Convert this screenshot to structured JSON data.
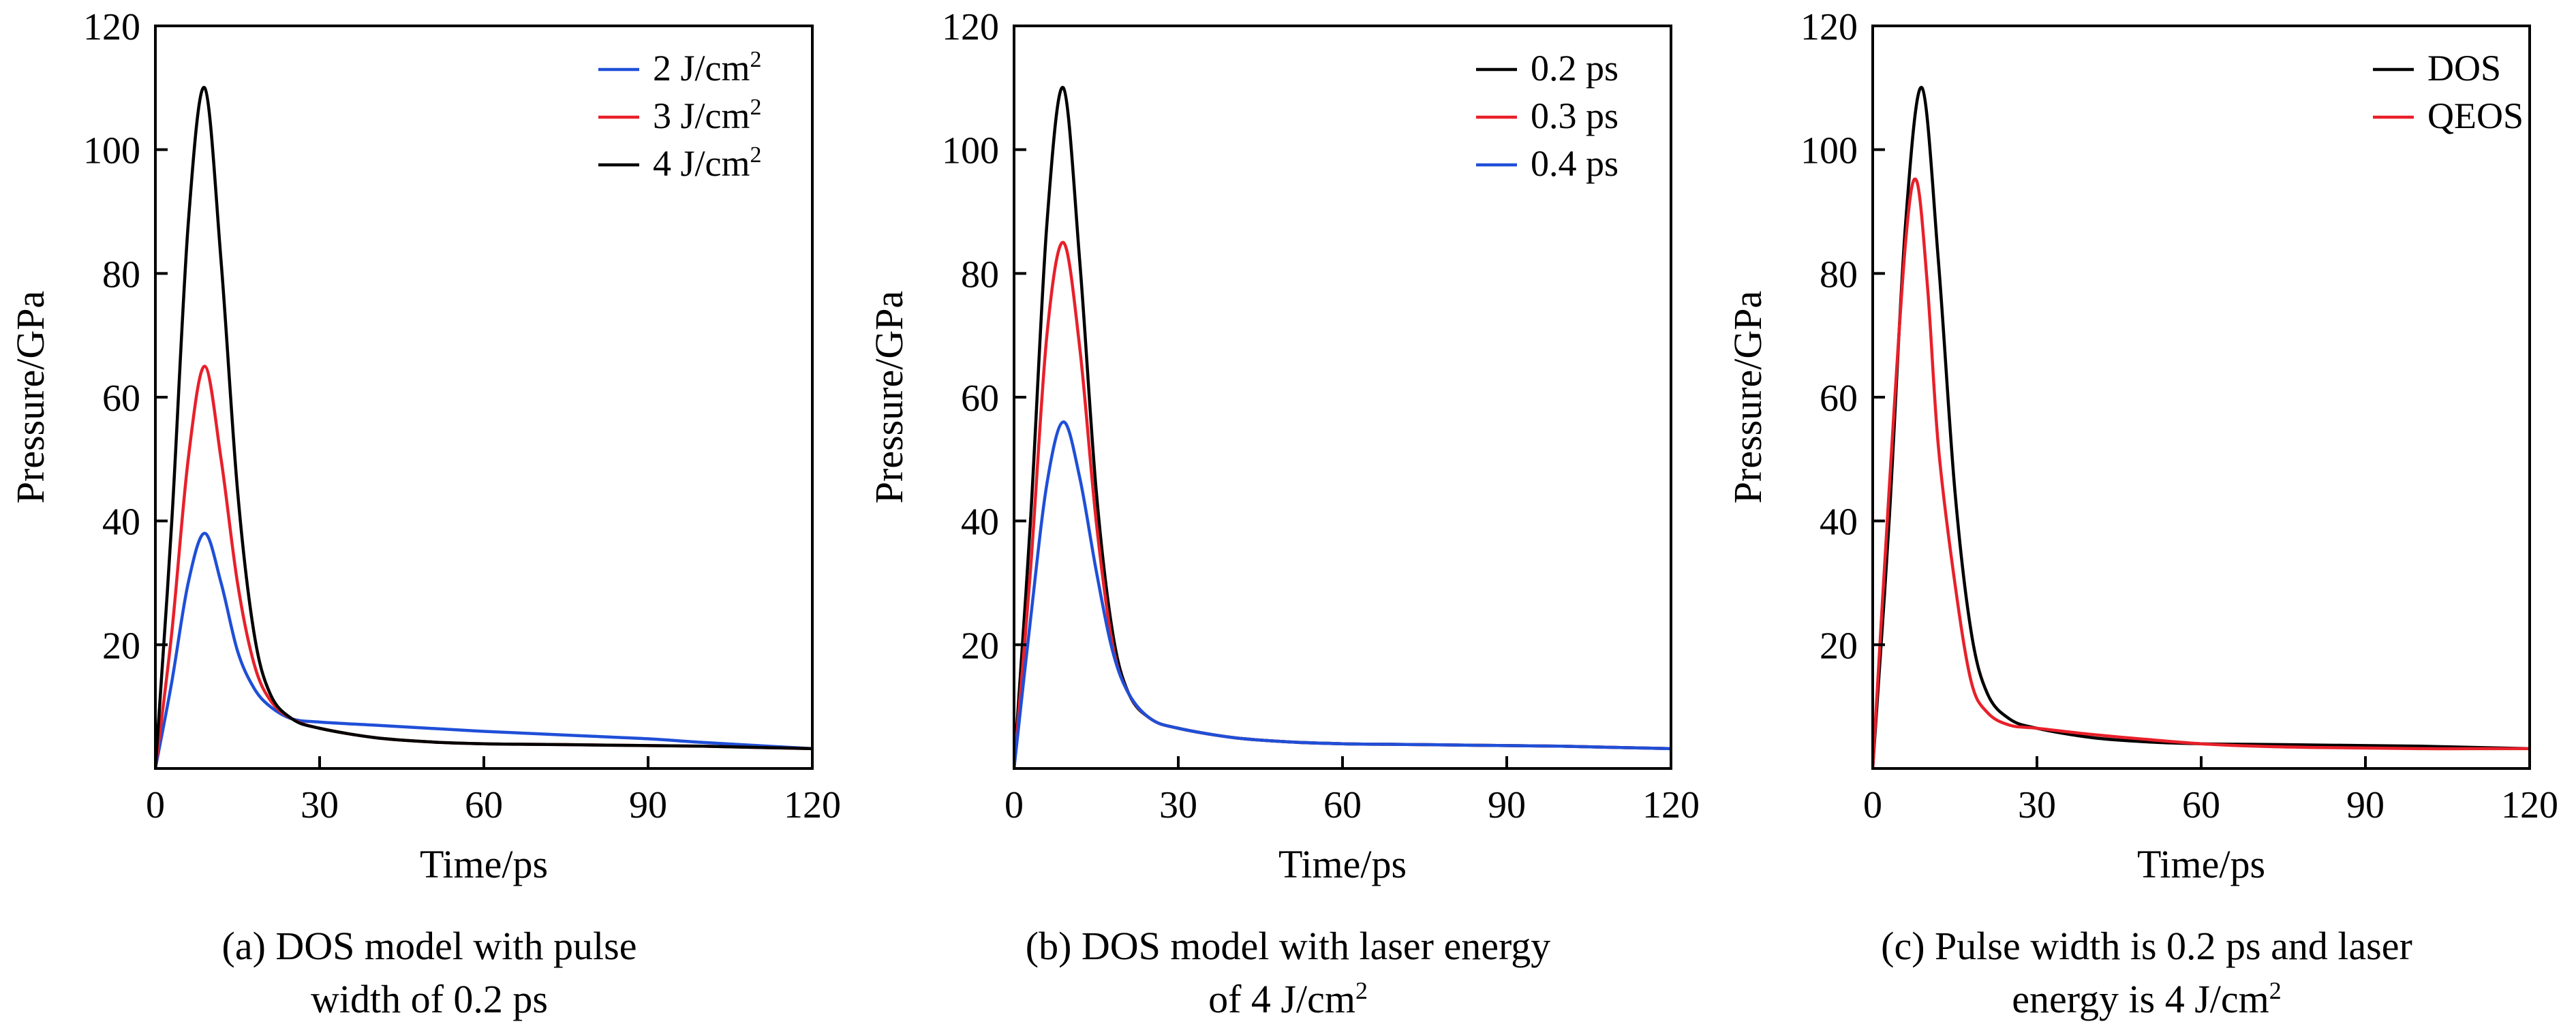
{
  "colors": {
    "black": "#000000",
    "red": "#e8202a",
    "blue": "#1f4fd8"
  },
  "chart_data": [
    {
      "type": "line",
      "xlabel": "Time/ps",
      "ylabel": "Pressure/GPa",
      "xlim": [
        0,
        120
      ],
      "ylim": [
        0,
        120
      ],
      "xticks": [
        "0",
        "30",
        "60",
        "90",
        "120"
      ],
      "yticks": [
        "20",
        "40",
        "60",
        "80",
        "100",
        "120"
      ],
      "legend_position": "top-right",
      "caption_lines": [
        "(a) DOS model with pulse",
        "width of 0.2 ps"
      ],
      "series": [
        {
          "name": "2 J/cm²",
          "color": "#1f4fd8",
          "x": [
            0,
            3,
            6,
            9,
            12,
            15,
            18,
            21,
            25,
            30,
            40,
            50,
            60,
            70,
            80,
            90,
            100,
            110,
            120
          ],
          "y": [
            0,
            14,
            30,
            38,
            30,
            19,
            13,
            10,
            8,
            7.5,
            7,
            6.5,
            6,
            5.6,
            5.2,
            4.8,
            4.2,
            3.7,
            3.2
          ]
        },
        {
          "name": "3 J/cm²",
          "color": "#e8202a",
          "x": [
            0,
            3,
            6,
            9,
            12,
            15,
            18,
            21,
            25,
            30,
            40,
            50,
            60,
            70,
            80,
            90,
            100,
            110,
            120
          ],
          "y": [
            0,
            22,
            50,
            65,
            50,
            30,
            17,
            11,
            8,
            6.5,
            5,
            4.3,
            4,
            3.9,
            3.8,
            3.7,
            3.6,
            3.4,
            3.2
          ]
        },
        {
          "name": "4 J/cm²",
          "color": "#000000",
          "x": [
            0,
            3,
            6,
            9,
            12,
            15,
            18,
            21,
            25,
            30,
            40,
            50,
            60,
            70,
            80,
            90,
            100,
            110,
            120
          ],
          "y": [
            0,
            40,
            88,
            110,
            82,
            45,
            22,
            12,
            8,
            6.5,
            5,
            4.3,
            4,
            3.9,
            3.8,
            3.7,
            3.6,
            3.4,
            3.2
          ]
        }
      ]
    },
    {
      "type": "line",
      "xlabel": "Time/ps",
      "ylabel": "Pressure/GPa",
      "xlim": [
        0,
        120
      ],
      "ylim": [
        0,
        120
      ],
      "xticks": [
        "0",
        "30",
        "60",
        "90",
        "120"
      ],
      "yticks": [
        "20",
        "40",
        "60",
        "80",
        "100",
        "120"
      ],
      "legend_position": "top-right",
      "caption_lines": [
        "(b) DOS model with laser energy",
        "of 4 J/cm²"
      ],
      "series": [
        {
          "name": "0.2 ps",
          "color": "#000000",
          "x": [
            0,
            3,
            6,
            9,
            12,
            15,
            18,
            21,
            25,
            30,
            40,
            50,
            60,
            70,
            80,
            90,
            100,
            110,
            120
          ],
          "y": [
            0,
            40,
            88,
            110,
            82,
            45,
            22,
            12,
            8,
            6.5,
            5,
            4.3,
            4,
            3.9,
            3.8,
            3.7,
            3.6,
            3.4,
            3.2
          ]
        },
        {
          "name": "0.3 ps",
          "color": "#e8202a",
          "x": [
            0,
            3,
            6,
            9,
            12,
            15,
            18,
            21,
            25,
            30,
            40,
            50,
            60,
            70,
            80,
            90,
            100,
            110,
            120
          ],
          "y": [
            0,
            32,
            70,
            85,
            68,
            40,
            20,
            12,
            8,
            6.5,
            5,
            4.3,
            4,
            3.9,
            3.8,
            3.7,
            3.6,
            3.4,
            3.2
          ]
        },
        {
          "name": "0.4 ps",
          "color": "#1f4fd8",
          "x": [
            0,
            3,
            6,
            9,
            12,
            15,
            18,
            21,
            25,
            30,
            40,
            50,
            60,
            70,
            80,
            90,
            100,
            110,
            120
          ],
          "y": [
            0,
            24,
            46,
            56,
            47,
            32,
            19,
            12,
            8,
            6.5,
            5,
            4.3,
            4,
            3.9,
            3.8,
            3.7,
            3.6,
            3.4,
            3.2
          ]
        }
      ]
    },
    {
      "type": "line",
      "xlabel": "Time/ps",
      "ylabel": "Pressure/GPa",
      "xlim": [
        0,
        120
      ],
      "ylim": [
        0,
        120
      ],
      "xticks": [
        "0",
        "30",
        "60",
        "90",
        "120"
      ],
      "yticks": [
        "20",
        "40",
        "60",
        "80",
        "100",
        "120"
      ],
      "legend_position": "top-right",
      "caption_lines": [
        "(c) Pulse width is 0.2 ps and laser",
        "energy is 4 J/cm²"
      ],
      "series": [
        {
          "name": "DOS",
          "color": "#000000",
          "x": [
            0,
            3,
            6,
            9,
            12,
            15,
            18,
            21,
            25,
            30,
            40,
            50,
            60,
            70,
            80,
            90,
            100,
            110,
            120
          ],
          "y": [
            0,
            40,
            88,
            110,
            82,
            45,
            22,
            12,
            8,
            6.5,
            5,
            4.3,
            4,
            3.9,
            3.8,
            3.7,
            3.6,
            3.4,
            3.2
          ]
        },
        {
          "name": "QEOS",
          "color": "#e8202a",
          "x": [
            0,
            3,
            6,
            8,
            10,
            12,
            15,
            18,
            21,
            25,
            30,
            40,
            50,
            60,
            70,
            80,
            90,
            100,
            110,
            120
          ],
          "y": [
            0,
            45,
            85,
            95,
            78,
            52,
            30,
            14,
            9,
            7,
            6.5,
            5.5,
            4.7,
            4,
            3.6,
            3.4,
            3.3,
            3.2,
            3.2,
            3.2
          ]
        }
      ]
    }
  ]
}
